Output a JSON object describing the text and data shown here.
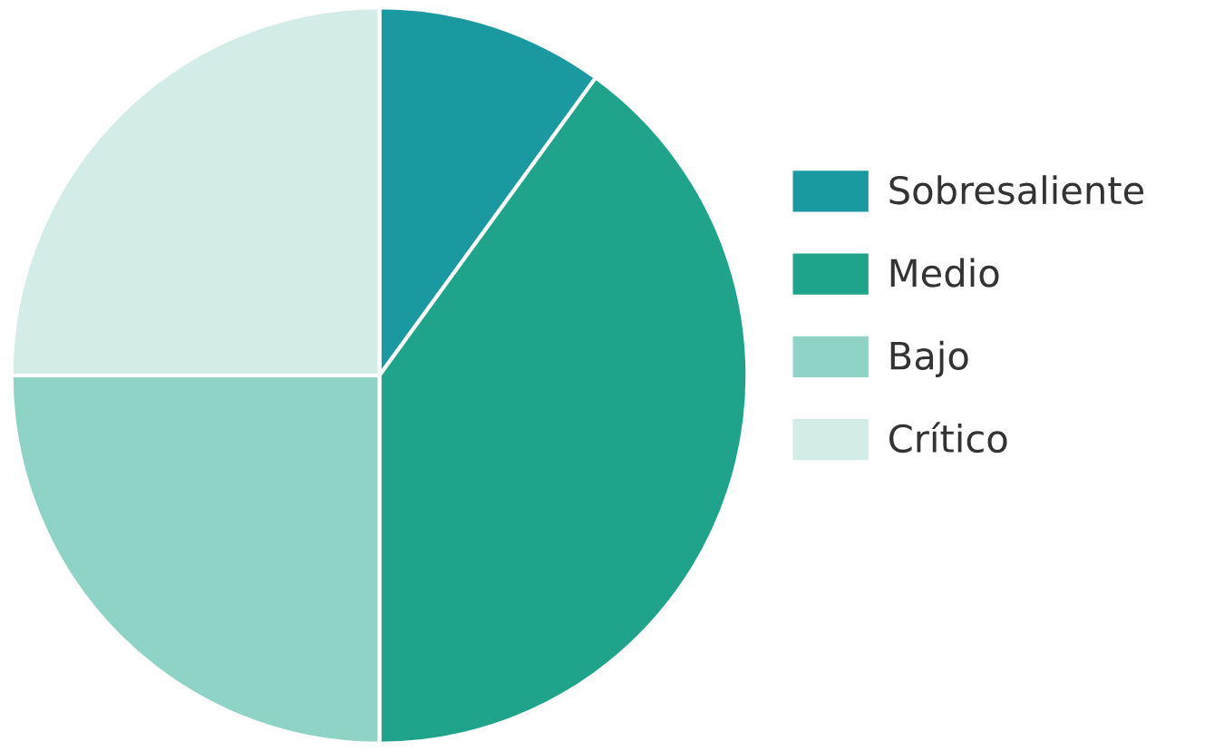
{
  "chart_data": {
    "type": "pie",
    "categories": [
      "Sobresaliente",
      "Medio",
      "Bajo",
      "Crítico"
    ],
    "values": [
      10,
      40,
      25,
      25
    ],
    "colors": [
      "#1a9aa0",
      "#1fa38b",
      "#8fd2c6",
      "#d3ece8"
    ],
    "legend": "right"
  }
}
